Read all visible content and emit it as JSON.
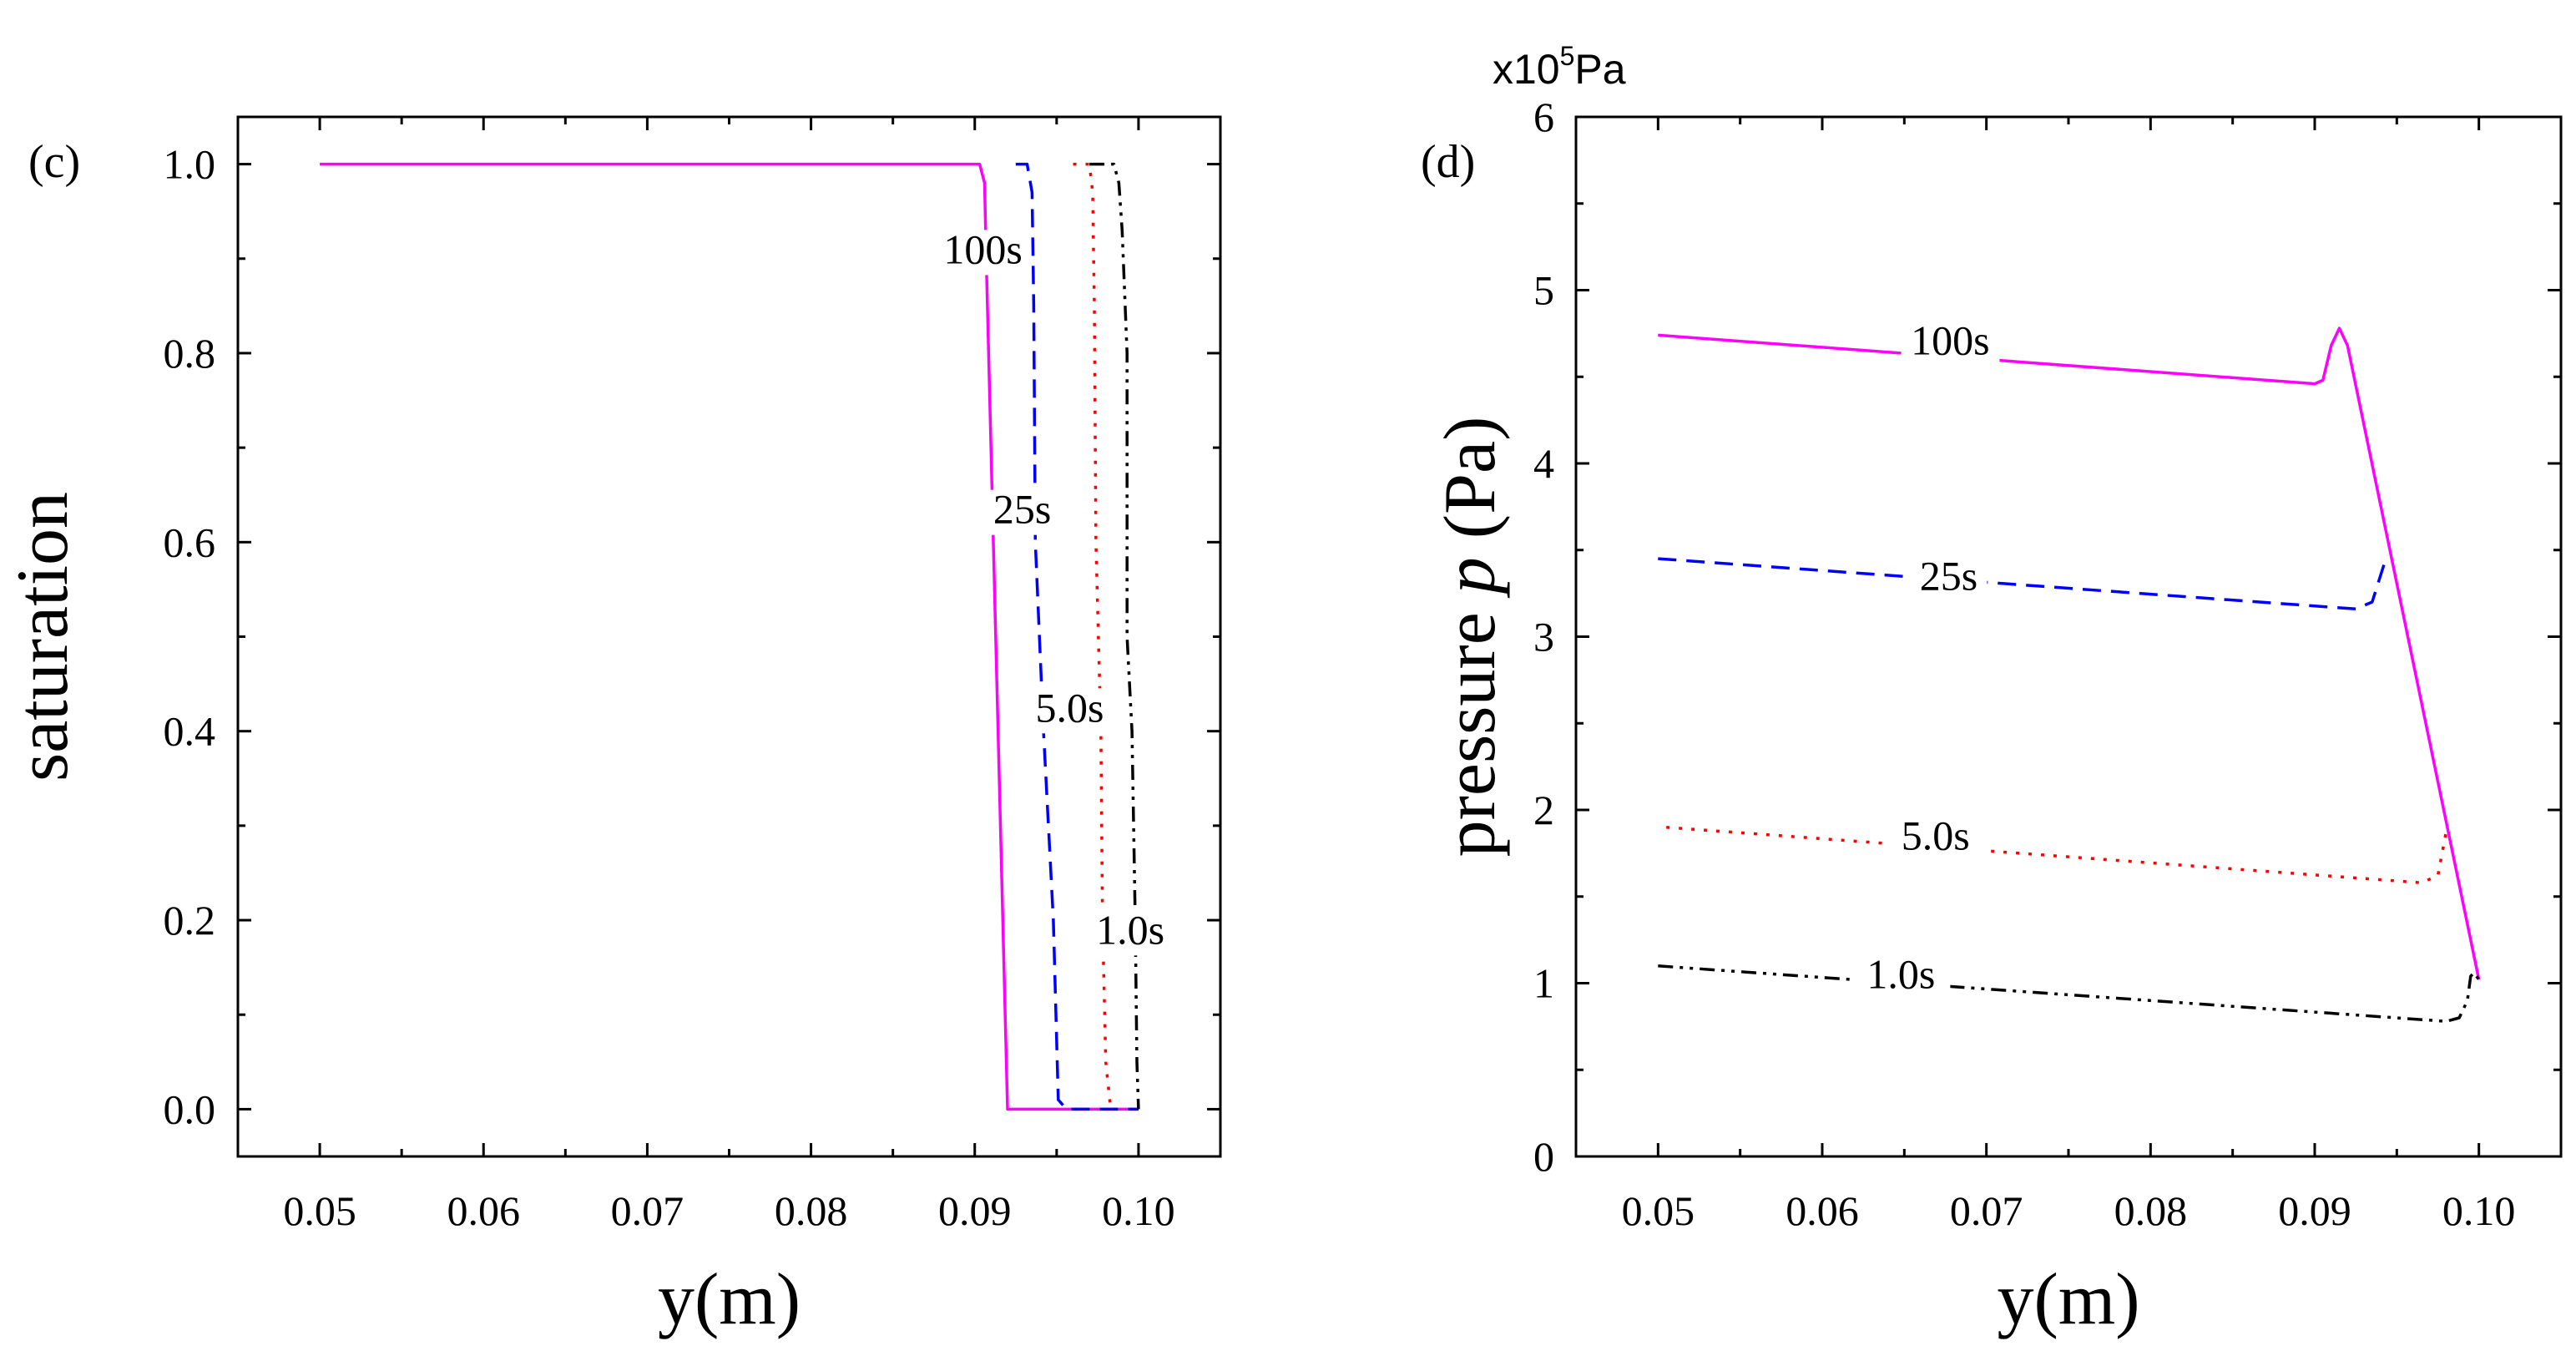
{
  "chart_data": [
    {
      "type": "line",
      "panel_label": "(c)",
      "xlabel": "y(m)",
      "ylabel": "saturation",
      "xlim": [
        0.045,
        0.105
      ],
      "ylim": [
        -0.05,
        1.05
      ],
      "xticks": [
        "0.05",
        "0.06",
        "0.07",
        "0.08",
        "0.09",
        "0.10"
      ],
      "yticks": [
        "0.0",
        "0.2",
        "0.4",
        "0.6",
        "0.8",
        "1.0"
      ],
      "series": [
        {
          "name": "100s",
          "color": "#ff00ff",
          "dash": "solid",
          "points": [
            [
              0.05,
              1.0
            ],
            [
              0.0903,
              1.0
            ],
            [
              0.0906,
              0.98
            ],
            [
              0.0907,
              0.9
            ],
            [
              0.092,
              0.0
            ],
            [
              0.1,
              0.0
            ]
          ],
          "label_at": [
            0.0905,
            0.895
          ]
        },
        {
          "name": "25s",
          "color": "#0000ff",
          "dash": "dashed",
          "points": [
            [
              0.0925,
              1.0
            ],
            [
              0.0932,
              1.0
            ],
            [
              0.0935,
              0.97
            ],
            [
              0.0936,
              0.85
            ],
            [
              0.0937,
              0.6
            ],
            [
              0.0942,
              0.4
            ],
            [
              0.0948,
              0.2
            ],
            [
              0.0951,
              0.01
            ],
            [
              0.0956,
              0.0
            ],
            [
              0.1,
              0.0
            ]
          ],
          "label_at": [
            0.0929,
            0.62
          ]
        },
        {
          "name": "5.0s",
          "color": "#ff0000",
          "dash": "dotted",
          "points": [
            [
              0.096,
              1.0
            ],
            [
              0.097,
              1.0
            ],
            [
              0.0972,
              0.97
            ],
            [
              0.0973,
              0.85
            ],
            [
              0.0974,
              0.6
            ],
            [
              0.0977,
              0.4
            ],
            [
              0.0978,
              0.2
            ],
            [
              0.098,
              0.05
            ],
            [
              0.0983,
              0.0
            ]
          ],
          "label_at": [
            0.0958,
            0.41
          ]
        },
        {
          "name": "1.0s",
          "color": "#000000",
          "dash": "dashdotdot",
          "points": [
            [
              0.097,
              1.0
            ],
            [
              0.0985,
              1.0
            ],
            [
              0.0988,
              0.98
            ],
            [
              0.099,
              0.93
            ],
            [
              0.0993,
              0.8
            ],
            [
              0.0993,
              0.5
            ],
            [
              0.0996,
              0.4
            ],
            [
              0.0998,
              0.2
            ],
            [
              0.0999,
              0.05
            ],
            [
              0.1,
              0.0
            ]
          ],
          "label_at": [
            0.0995,
            0.175
          ]
        }
      ]
    },
    {
      "type": "line",
      "panel_label": "(d)",
      "xlabel": "y(m)",
      "ylabel": "pressure p (Pa)",
      "ylabel_prefix": "pressure ",
      "ylabel_var": "p",
      "ylabel_suffix": " (Pa)",
      "scale_label": "x10",
      "scale_exponent": "5",
      "scale_unit": "Pa",
      "xlim": [
        0.045,
        0.105
      ],
      "ylim": [
        0,
        6
      ],
      "xticks": [
        "0.05",
        "0.06",
        "0.07",
        "0.08",
        "0.09",
        "0.10"
      ],
      "yticks": [
        "0",
        "1",
        "2",
        "3",
        "4",
        "5",
        "6"
      ],
      "series": [
        {
          "name": "100s",
          "color": "#ff00ff",
          "dash": "solid",
          "points": [
            [
              0.05,
              4.74
            ],
            [
              0.09,
              4.46
            ],
            [
              0.0905,
              4.48
            ],
            [
              0.091,
              4.68
            ],
            [
              0.0915,
              4.78
            ],
            [
              0.092,
              4.68
            ],
            [
              0.1,
              1.02
            ]
          ],
          "label_at": [
            0.0678,
            4.63
          ]
        },
        {
          "name": "25s",
          "color": "#0000ff",
          "dash": "dashed",
          "points": [
            [
              0.05,
              3.45
            ],
            [
              0.0925,
              3.16
            ],
            [
              0.0935,
              3.2
            ],
            [
              0.0944,
              3.47
            ]
          ],
          "label_at": [
            0.0677,
            3.27
          ]
        },
        {
          "name": "5.0s",
          "color": "#ff0000",
          "dash": "dotted",
          "points": [
            [
              0.0505,
              1.9
            ],
            [
              0.0965,
              1.58
            ],
            [
              0.0975,
              1.62
            ],
            [
              0.098,
              1.87
            ]
          ],
          "label_at": [
            0.0669,
            1.77
          ]
        },
        {
          "name": "1.0s",
          "color": "#000000",
          "dash": "dashdotdot",
          "points": [
            [
              0.05,
              1.1
            ],
            [
              0.098,
              0.78
            ],
            [
              0.0988,
              0.8
            ],
            [
              0.0993,
              0.9
            ],
            [
              0.0995,
              1.04
            ],
            [
              0.0997,
              1.06
            ],
            [
              0.1,
              1.02
            ]
          ],
          "label_at": [
            0.0648,
            0.97
          ]
        }
      ]
    }
  ]
}
